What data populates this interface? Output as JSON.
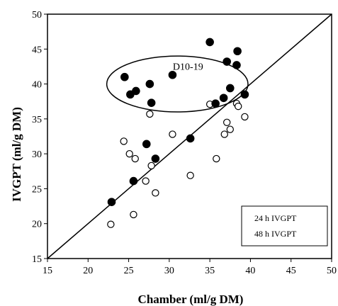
{
  "chart_data": {
    "type": "scatter",
    "xlabel": "Chamber (ml/g DM)",
    "ylabel": "IVGPT (ml/g DM)",
    "xlim": [
      15,
      50
    ],
    "ylim": [
      15,
      50
    ],
    "xticks": [
      "15",
      "20",
      "25",
      "30",
      "35",
      "40",
      "45",
      "50"
    ],
    "yticks": [
      "15",
      "20",
      "25",
      "30",
      "35",
      "40",
      "45",
      "50"
    ],
    "grid": false,
    "legend_position": "bottom-right",
    "reference_line": {
      "label": "",
      "points": [
        [
          15,
          15
        ],
        [
          50,
          50
        ]
      ]
    },
    "annotation": {
      "text": "D10-19",
      "ellipse_center": [
        31,
        40
      ],
      "ellipse_radius": [
        8.7,
        4
      ]
    },
    "series": [
      {
        "name": "24 h IVGPT",
        "marker": "open-circle",
        "points": [
          [
            22.8,
            19.9
          ],
          [
            24.4,
            31.8
          ],
          [
            25.1,
            30.0
          ],
          [
            25.6,
            21.3
          ],
          [
            25.8,
            29.3
          ],
          [
            27.1,
            26.1
          ],
          [
            27.6,
            35.7
          ],
          [
            27.8,
            28.3
          ],
          [
            28.3,
            24.4
          ],
          [
            30.4,
            32.8
          ],
          [
            32.6,
            26.9
          ],
          [
            35.0,
            37.1
          ],
          [
            35.8,
            29.3
          ],
          [
            36.8,
            32.8
          ],
          [
            37.1,
            34.5
          ],
          [
            37.5,
            33.5
          ],
          [
            38.3,
            37.2
          ],
          [
            38.5,
            36.8
          ],
          [
            39.3,
            35.3
          ]
        ]
      },
      {
        "name": "48 h IVGPT",
        "marker": "filled-circle",
        "points": [
          [
            22.9,
            23.1
          ],
          [
            24.5,
            41.0
          ],
          [
            25.2,
            38.5
          ],
          [
            25.6,
            26.1
          ],
          [
            25.9,
            39.0
          ],
          [
            27.2,
            31.4
          ],
          [
            27.6,
            40.0
          ],
          [
            27.8,
            37.3
          ],
          [
            28.3,
            29.3
          ],
          [
            30.4,
            41.3
          ],
          [
            32.6,
            32.2
          ],
          [
            35.0,
            46.0
          ],
          [
            35.7,
            37.2
          ],
          [
            36.7,
            38.0
          ],
          [
            37.1,
            43.2
          ],
          [
            37.5,
            39.4
          ],
          [
            38.3,
            42.7
          ],
          [
            38.4,
            44.7
          ],
          [
            39.3,
            38.5
          ]
        ]
      }
    ]
  }
}
